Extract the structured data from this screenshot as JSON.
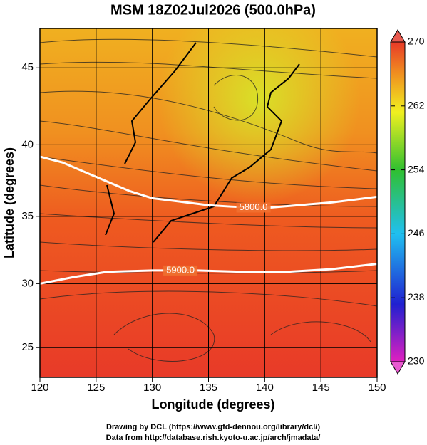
{
  "chart_data": {
    "type": "map",
    "projection": "mercator",
    "title": "MSM 18Z02Jul2026 (500.0hPa)",
    "x_label": "Longitude (degrees)",
    "y_label": "Latitude  (degrees)",
    "xlim": [
      120,
      150
    ],
    "ylim": [
      22.6,
      47.4
    ],
    "xticks": [
      120,
      125,
      130,
      135,
      140,
      145,
      150
    ],
    "yticks": [
      25,
      30,
      35,
      40,
      45
    ],
    "grid": true,
    "colorbar": {
      "lim": [
        230,
        270
      ],
      "ticks": [
        230,
        238,
        246,
        254,
        262,
        270
      ]
    },
    "contours": [
      {
        "level": {
          "value": 5800,
          "label": "5800.0"
        },
        "color": "#ffffff",
        "label_lon": 139,
        "lon": [
          120,
          122,
          125,
          128,
          130,
          133,
          135,
          137,
          140,
          143,
          146,
          148,
          150
        ],
        "lat": [
          39.2,
          38.8,
          37.8,
          36.8,
          36.3,
          36.0,
          35.8,
          35.7,
          35.6,
          35.8,
          36.0,
          36.2,
          36.4
        ]
      },
      {
        "level": {
          "value": 5900,
          "label": "5900.0"
        },
        "color": "#ffffff",
        "label_lon": 132.5,
        "lon": [
          120,
          123,
          126,
          130,
          134,
          138,
          142,
          146,
          150
        ],
        "lat": [
          30.0,
          30.5,
          30.9,
          31.0,
          31.0,
          30.9,
          30.9,
          31.1,
          31.5
        ]
      }
    ]
  },
  "credits": [
    "Drawing by DCL (https://www.gfd-dennou.org/library/dcl/)",
    "Data from http://database.rish.kyoto-u.ac.jp/arch/jmadata/"
  ]
}
